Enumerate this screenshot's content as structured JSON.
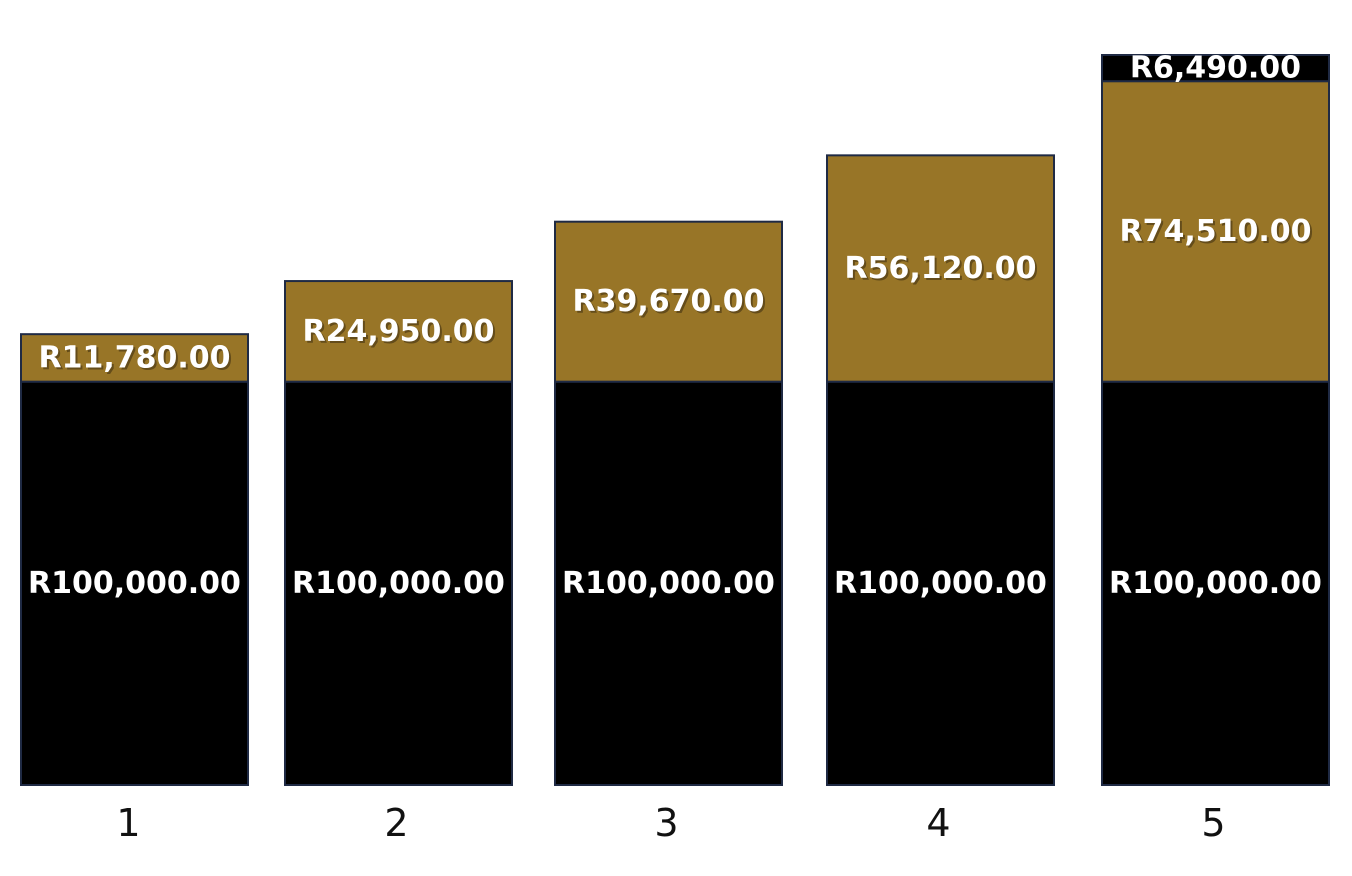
{
  "colors": {
    "base": "#000000",
    "growth": "#987527",
    "extra": "#000000",
    "border": "#1f2a44",
    "label": "#ffffff"
  },
  "chart_data": {
    "type": "bar",
    "stacked": true,
    "title": "",
    "xlabel": "",
    "ylabel": "",
    "grid": false,
    "ylim": [
      0,
      185000
    ],
    "categories": [
      "1",
      "2",
      "3",
      "4",
      "5"
    ],
    "series": [
      {
        "key": "base",
        "values": [
          100000,
          100000,
          100000,
          100000,
          100000
        ],
        "labels": [
          "R100,000.00",
          "R100,000.00",
          "R100,000.00",
          "R100,000.00",
          "R100,000.00"
        ]
      },
      {
        "key": "growth",
        "values": [
          11780,
          24950,
          39670,
          56120,
          74510
        ],
        "labels": [
          "R11,780.00",
          "R24,950.00",
          "R39,670.00",
          "R56,120.00",
          "R74,510.00"
        ]
      },
      {
        "key": "extra",
        "values": [
          0,
          0,
          0,
          0,
          6490
        ],
        "labels": [
          "",
          "",
          "",
          "",
          "R6,490.00"
        ]
      }
    ]
  }
}
